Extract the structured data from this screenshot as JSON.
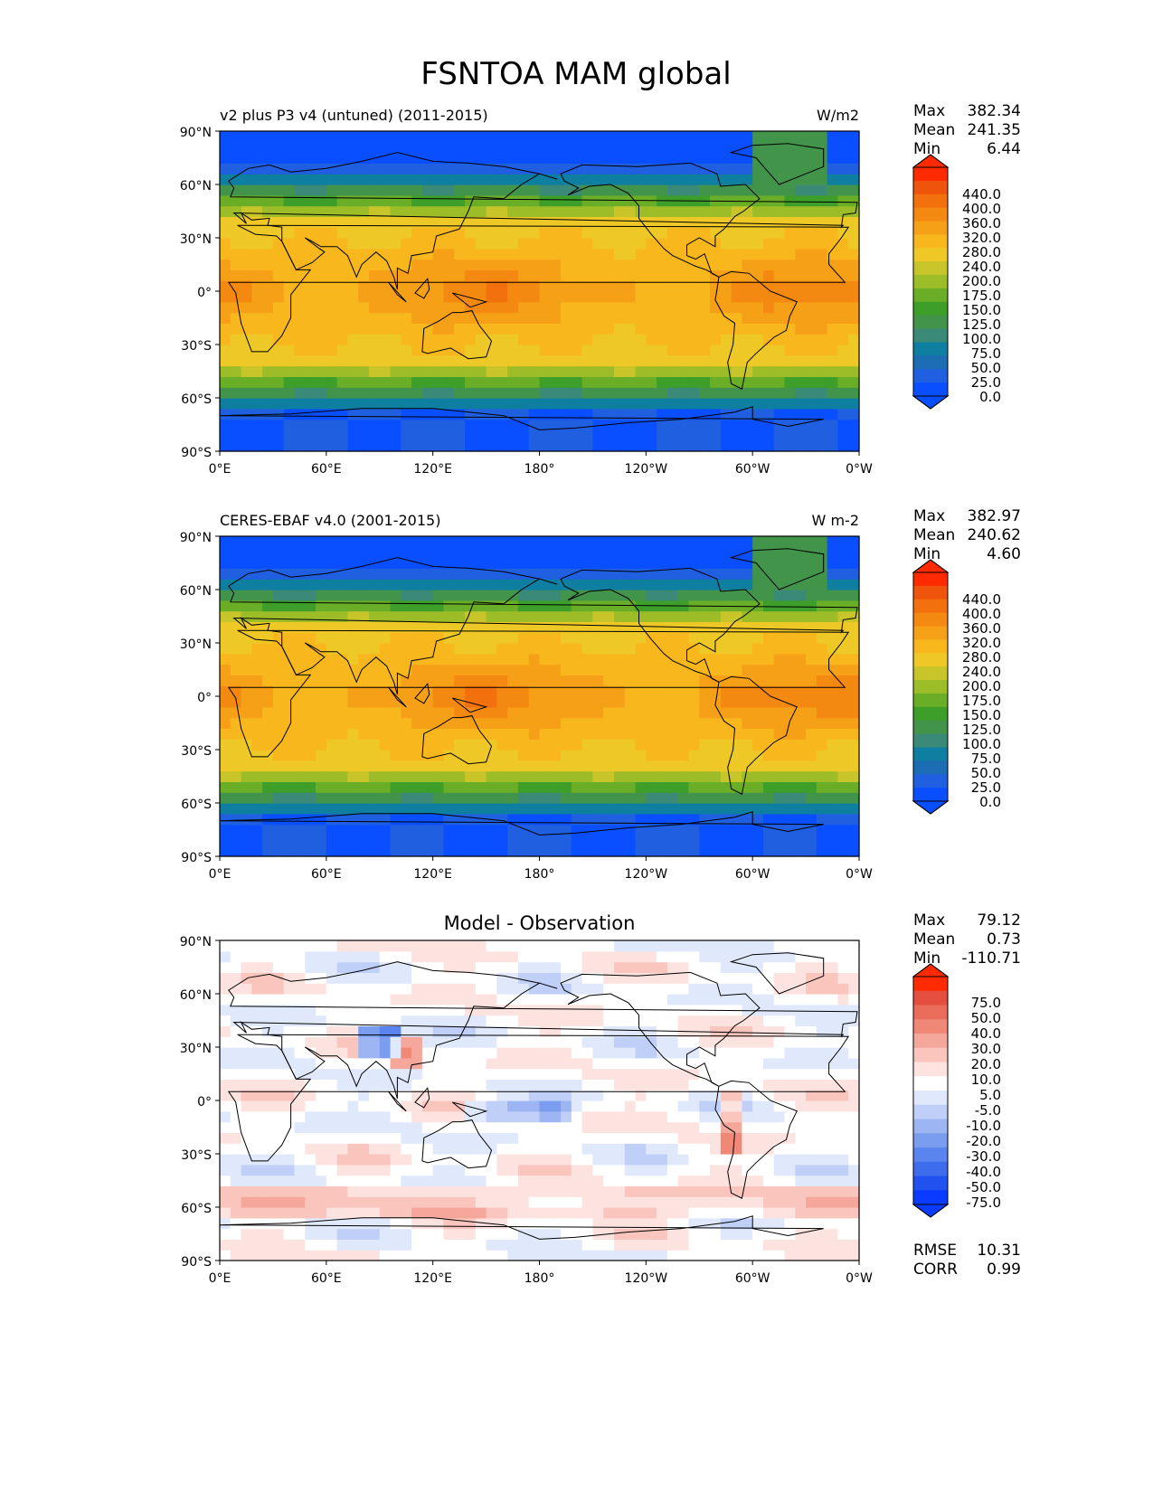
{
  "page": {
    "title": "FSNTOA MAM global"
  },
  "lat_ticks": [
    "90°N",
    "60°N",
    "30°N",
    "0°",
    "30°S",
    "60°S",
    "90°S"
  ],
  "lon_ticks": [
    "0°E",
    "60°E",
    "120°E",
    "180°",
    "120°W",
    "60°W",
    "0°W"
  ],
  "colors": {
    "field": [
      "#0a4fff",
      "#1f5fe0",
      "#1c6db4",
      "#0e7fa0",
      "#3b8a77",
      "#43944b",
      "#3d9f2a",
      "#6aae27",
      "#9cbd27",
      "#c7c52a",
      "#eec826",
      "#f8b81d",
      "#f6a017",
      "#f48912",
      "#f2710e",
      "#ef540c",
      "#ff2a00"
    ],
    "diff": [
      "#0a3bff",
      "#2152f0",
      "#3d6cec",
      "#5a84ee",
      "#7b9df0",
      "#9db6f3",
      "#bfcff7",
      "#e0e8fb",
      "#ffffff",
      "#fde3df",
      "#f9c5bd",
      "#f5a79b",
      "#f08878",
      "#ea6c5b",
      "#e44f3f",
      "#ff2a00"
    ]
  },
  "chart_data": [
    {
      "type": "heatmap",
      "subtitle": "v2 plus P3 v4 (untuned) (2011-2015)",
      "units": "W/m2",
      "stats": [
        {
          "label": "Max",
          "value": "382.34"
        },
        {
          "label": "Mean",
          "value": "241.35"
        },
        {
          "label": "Min",
          "value": "6.44"
        }
      ],
      "colorbar_levels": [
        "440.0",
        "400.0",
        "360.0",
        "320.0",
        "280.0",
        "240.0",
        "200.0",
        "175.0",
        "150.0",
        "125.0",
        "100.0",
        "75.0",
        "50.0",
        "25.0",
        "0.0"
      ],
      "xlim": [
        0,
        360
      ],
      "ylim": [
        -90,
        90
      ]
    },
    {
      "type": "heatmap",
      "subtitle": "CERES-EBAF v4.0 (2001-2015)",
      "units": "W m-2",
      "stats": [
        {
          "label": "Max",
          "value": "382.97"
        },
        {
          "label": "Mean",
          "value": "240.62"
        },
        {
          "label": "Min",
          "value": "4.60"
        }
      ],
      "colorbar_levels": [
        "440.0",
        "400.0",
        "360.0",
        "320.0",
        "280.0",
        "240.0",
        "200.0",
        "175.0",
        "150.0",
        "125.0",
        "100.0",
        "75.0",
        "50.0",
        "25.0",
        "0.0"
      ],
      "xlim": [
        0,
        360
      ],
      "ylim": [
        -90,
        90
      ]
    },
    {
      "type": "heatmap",
      "title": "Model - Observation",
      "stats": [
        {
          "label": "Max",
          "value": "79.12"
        },
        {
          "label": "Mean",
          "value": "0.73"
        },
        {
          "label": "Min",
          "value": "-110.71"
        }
      ],
      "colorbar_levels": [
        "75.0",
        "50.0",
        "40.0",
        "30.0",
        "20.0",
        "10.0",
        "5.0",
        "-5.0",
        "-10.0",
        "-20.0",
        "-30.0",
        "-40.0",
        "-50.0",
        "-75.0"
      ],
      "extra_stats": [
        {
          "label": "RMSE",
          "value": "10.31"
        },
        {
          "label": "CORR",
          "value": "0.99"
        }
      ],
      "xlim": [
        0,
        360
      ],
      "ylim": [
        -90,
        90
      ]
    }
  ]
}
